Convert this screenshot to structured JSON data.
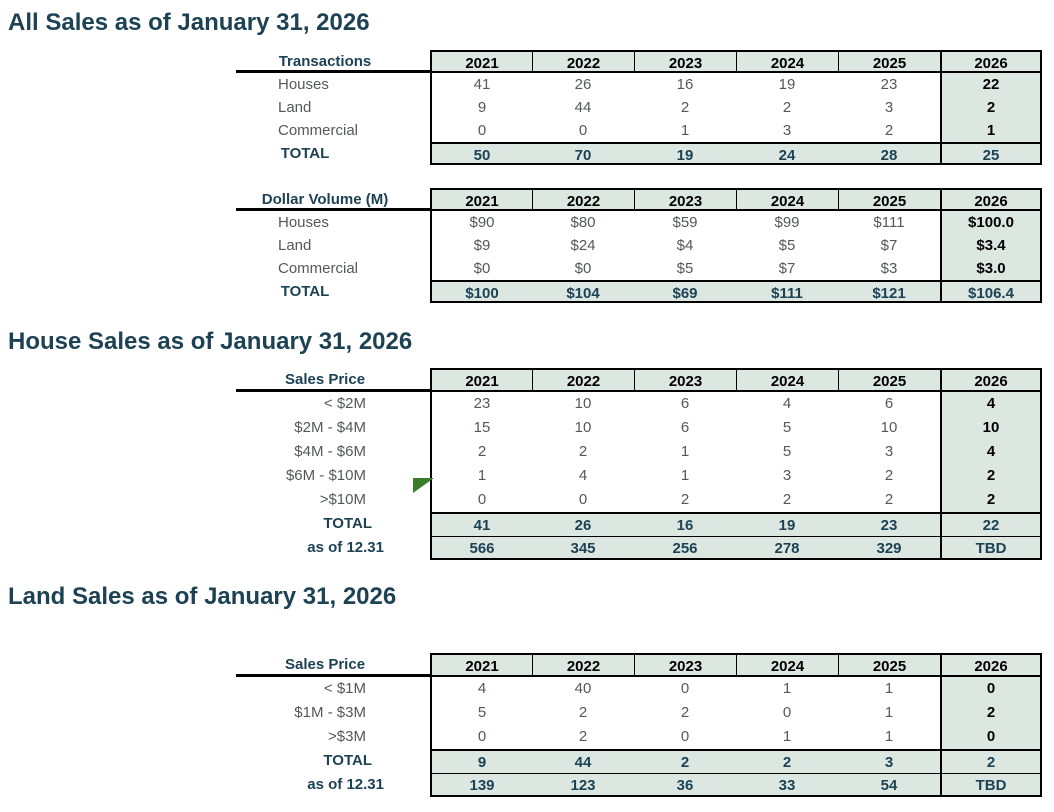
{
  "colors": {
    "title_text": "#1c4254",
    "cell_shade": "#dce7e2",
    "gray_text": "#54585b",
    "navy_text": "#1c4254",
    "border": "#000000",
    "flag_green": "#3a7d2c"
  },
  "sections": [
    {
      "title": "All Sales as of January 31, 2026"
    },
    {
      "title": "House Sales as of January 31, 2026"
    },
    {
      "title": "Land Sales as of January 31, 2026"
    }
  ],
  "years": [
    "2021",
    "2022",
    "2023",
    "2024",
    "2025",
    "2026"
  ],
  "flag_marker": {
    "table": "house-sales-price-table",
    "row": ">$10M",
    "year": "2021"
  },
  "tables": [
    {
      "id": "transactions-table",
      "section": 0,
      "label_header": "Transactions",
      "label_align": "left",
      "rows": [
        {
          "label": "Houses",
          "type": "data",
          "values": [
            "41",
            "26",
            "16",
            "19",
            "23",
            "22"
          ]
        },
        {
          "label": "Land",
          "type": "data",
          "values": [
            "9",
            "44",
            "2",
            "2",
            "3",
            "2"
          ]
        },
        {
          "label": "Commercial",
          "type": "data",
          "values": [
            "0",
            "0",
            "1",
            "3",
            "2",
            "1"
          ]
        },
        {
          "label": "TOTAL",
          "type": "total",
          "values": [
            "50",
            "70",
            "19",
            "24",
            "28",
            "25"
          ]
        }
      ]
    },
    {
      "id": "dollar-volume-table",
      "section": 0,
      "label_header": "Dollar Volume (M)",
      "label_align": "left",
      "rows": [
        {
          "label": "Houses",
          "type": "data",
          "values": [
            "$90",
            "$80",
            "$59",
            "$99",
            "$111",
            "$100.0"
          ]
        },
        {
          "label": "Land",
          "type": "data",
          "values": [
            "$9",
            "$24",
            "$4",
            "$5",
            "$7",
            "$3.4"
          ]
        },
        {
          "label": "Commercial",
          "type": "data",
          "values": [
            "$0",
            "$0",
            "$5",
            "$7",
            "$3",
            "$3.0"
          ]
        },
        {
          "label": "TOTAL",
          "type": "total",
          "values": [
            "$100",
            "$104",
            "$69",
            "$111",
            "$121",
            "$106.4"
          ]
        }
      ]
    },
    {
      "id": "house-sales-price-table",
      "section": 1,
      "label_header": "Sales Price",
      "label_align": "right",
      "rows": [
        {
          "label": "< $2M",
          "type": "data",
          "values": [
            "23",
            "10",
            "6",
            "4",
            "6",
            "4"
          ]
        },
        {
          "label": "$2M - $4M",
          "type": "data",
          "values": [
            "15",
            "10",
            "6",
            "5",
            "10",
            "10"
          ]
        },
        {
          "label": "$4M - $6M",
          "type": "data",
          "values": [
            "2",
            "2",
            "1",
            "5",
            "3",
            "4"
          ]
        },
        {
          "label": "$6M - $10M",
          "type": "data",
          "values": [
            "1",
            "4",
            "1",
            "3",
            "2",
            "2"
          ]
        },
        {
          "label": ">$10M",
          "type": "data",
          "values": [
            "0",
            "0",
            "2",
            "2",
            "2",
            "2"
          ]
        },
        {
          "label": "TOTAL",
          "type": "total",
          "values": [
            "41",
            "26",
            "16",
            "19",
            "23",
            "22"
          ]
        },
        {
          "label": "as of 12.31",
          "type": "asof",
          "values": [
            "566",
            "345",
            "256",
            "278",
            "329",
            "TBD"
          ]
        }
      ]
    },
    {
      "id": "land-sales-price-table",
      "section": 2,
      "label_header": "Sales Price",
      "label_align": "right",
      "rows": [
        {
          "label": "< $1M",
          "type": "data",
          "values": [
            "4",
            "40",
            "0",
            "1",
            "1",
            "0"
          ]
        },
        {
          "label": "$1M - $3M",
          "type": "data",
          "values": [
            "5",
            "2",
            "2",
            "0",
            "1",
            "2"
          ]
        },
        {
          "label": ">$3M",
          "type": "data",
          "values": [
            "0",
            "2",
            "0",
            "1",
            "1",
            "0"
          ]
        },
        {
          "label": "TOTAL",
          "type": "total",
          "values": [
            "9",
            "44",
            "2",
            "2",
            "3",
            "2"
          ]
        },
        {
          "label": "as of 12.31",
          "type": "asof",
          "values": [
            "139",
            "123",
            "36",
            "33",
            "54",
            "TBD"
          ]
        }
      ]
    }
  ]
}
